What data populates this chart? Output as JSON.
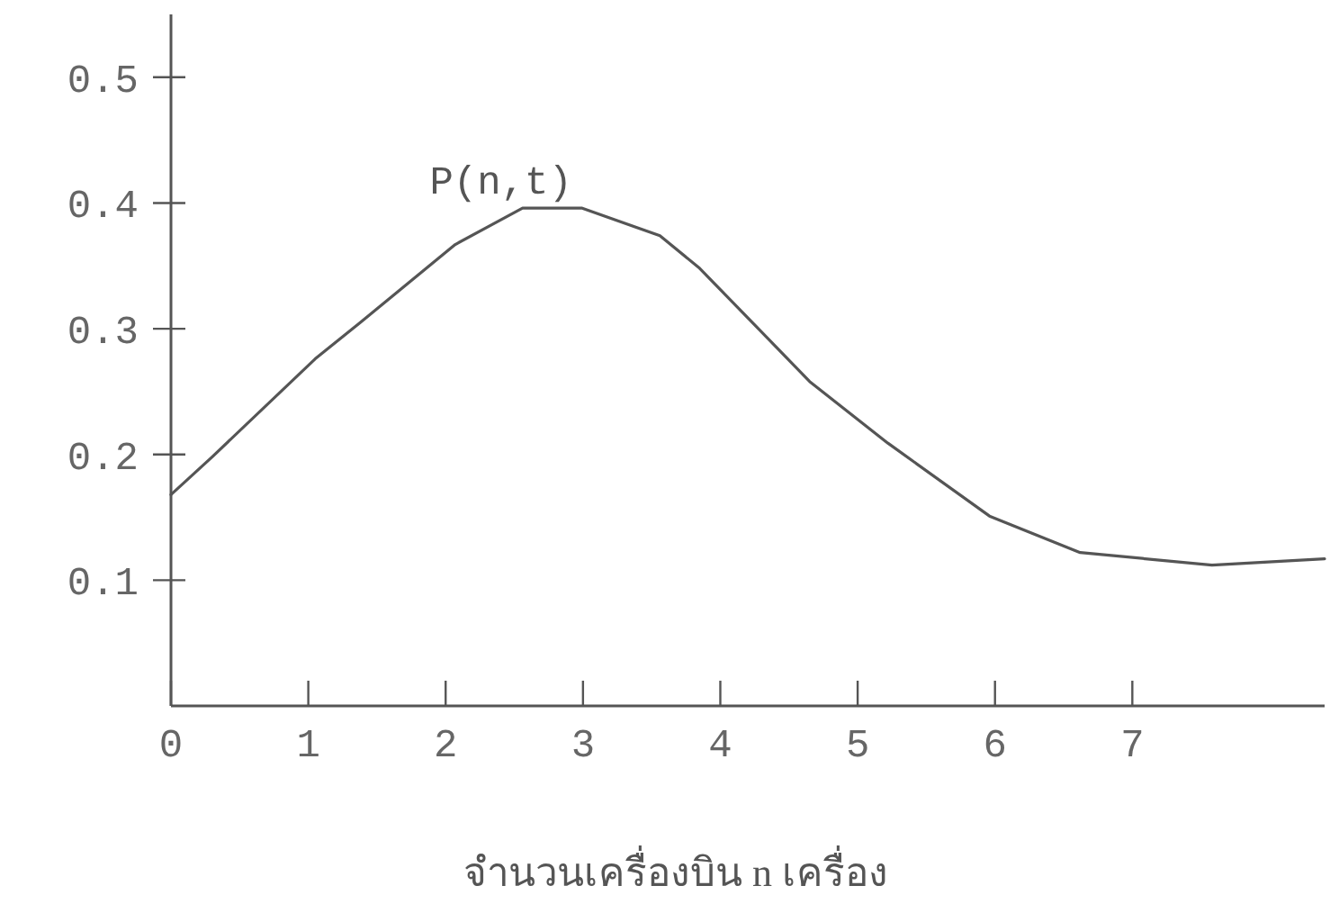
{
  "chart_data": {
    "type": "line",
    "xlabel": "จำนวนเครื่องบิน n เครื่อง",
    "xlim": [
      0,
      8.4
    ],
    "ylim": [
      0,
      0.55
    ],
    "xticks": [
      0,
      1,
      2,
      3,
      4,
      5,
      6,
      7
    ],
    "yticks": [
      0.1,
      0.2,
      0.3,
      0.4,
      0.5
    ],
    "grid": false,
    "marker": "none",
    "line_style": "solid",
    "series": [
      {
        "name": "P(n,t)",
        "color": "#555555",
        "x": [
          0,
          0.29,
          1.05,
          1.38,
          2.07,
          2.56,
          2.99,
          3.56,
          3.85,
          4.26,
          4.65,
          5.22,
          5.96,
          6.62,
          7.58,
          8.4
        ],
        "values": [
          0.168,
          0.197,
          0.276,
          0.305,
          0.367,
          0.396,
          0.396,
          0.374,
          0.348,
          0.302,
          0.258,
          0.209,
          0.151,
          0.122,
          0.112,
          0.117
        ]
      }
    ]
  }
}
